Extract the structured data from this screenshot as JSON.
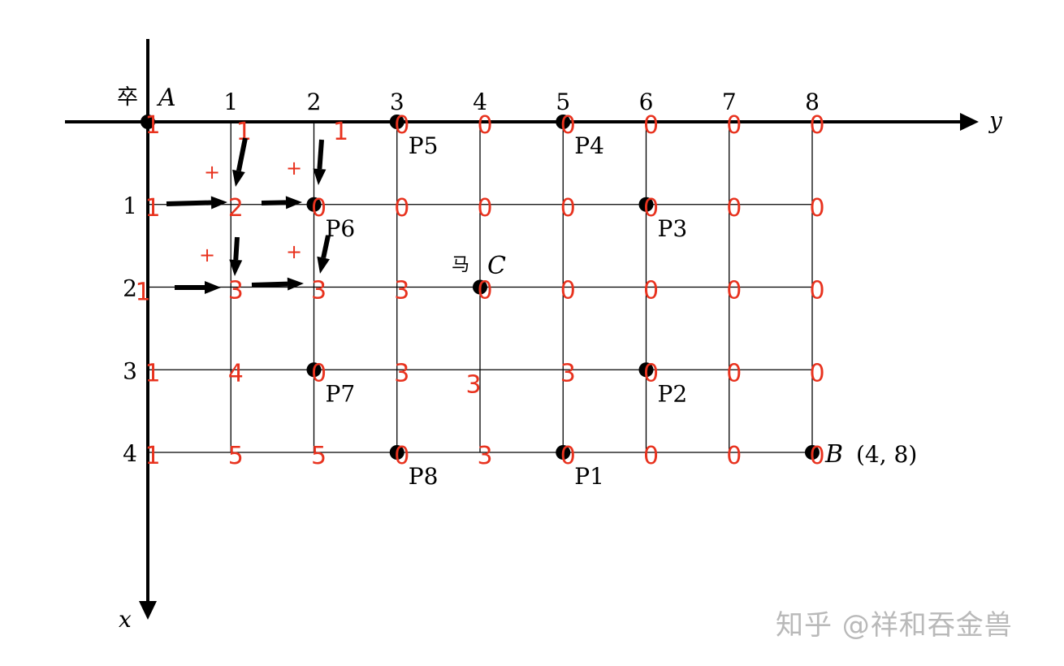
{
  "axes": {
    "horizontal_label": "y",
    "vertical_label": "x",
    "horizontal_ticks": [
      "1",
      "2",
      "3",
      "4",
      "5",
      "6",
      "7",
      "8"
    ],
    "vertical_ticks": [
      "1",
      "2",
      "3",
      "4"
    ]
  },
  "points": [
    {
      "name": "A",
      "row": 0,
      "col": 0,
      "label": "A",
      "char": "卒"
    },
    {
      "name": "P5",
      "row": 0,
      "col": 3,
      "label": "P5"
    },
    {
      "name": "P4",
      "row": 0,
      "col": 5,
      "label": "P4"
    },
    {
      "name": "P6",
      "row": 1,
      "col": 2,
      "label": "P6"
    },
    {
      "name": "P3",
      "row": 1,
      "col": 6,
      "label": "P3"
    },
    {
      "name": "C",
      "row": 2,
      "col": 4,
      "label": "C",
      "char": "马"
    },
    {
      "name": "P7",
      "row": 3,
      "col": 2,
      "label": "P7"
    },
    {
      "name": "P2",
      "row": 3,
      "col": 6,
      "label": "P2"
    },
    {
      "name": "P8",
      "row": 4,
      "col": 3,
      "label": "P8"
    },
    {
      "name": "P1",
      "row": 4,
      "col": 5,
      "label": "P1"
    },
    {
      "name": "B",
      "row": 4,
      "col": 8,
      "label": "B",
      "coord": "(4, 8)"
    }
  ],
  "path_counts": [
    [
      "1",
      "1",
      "1",
      "0",
      "0",
      "0",
      "0",
      "0",
      "0"
    ],
    [
      "1",
      "2",
      "0",
      "0",
      "0",
      "0",
      "0",
      "0",
      "0"
    ],
    [
      "1",
      "3",
      "3",
      "3",
      "0",
      "0",
      "0",
      "0",
      "0"
    ],
    [
      "1",
      "4",
      "0",
      "3",
      "3",
      "3",
      "0",
      "0",
      "0"
    ],
    [
      "1",
      "5",
      "5",
      "0",
      "3",
      "0",
      "0",
      "0",
      "0"
    ]
  ],
  "plus_sign": "+",
  "colors": {
    "axis": "#000000",
    "annotation": "#e8321e",
    "watermark": "#b9b9b9"
  },
  "watermark": "知乎 @祥和吞金兽"
}
